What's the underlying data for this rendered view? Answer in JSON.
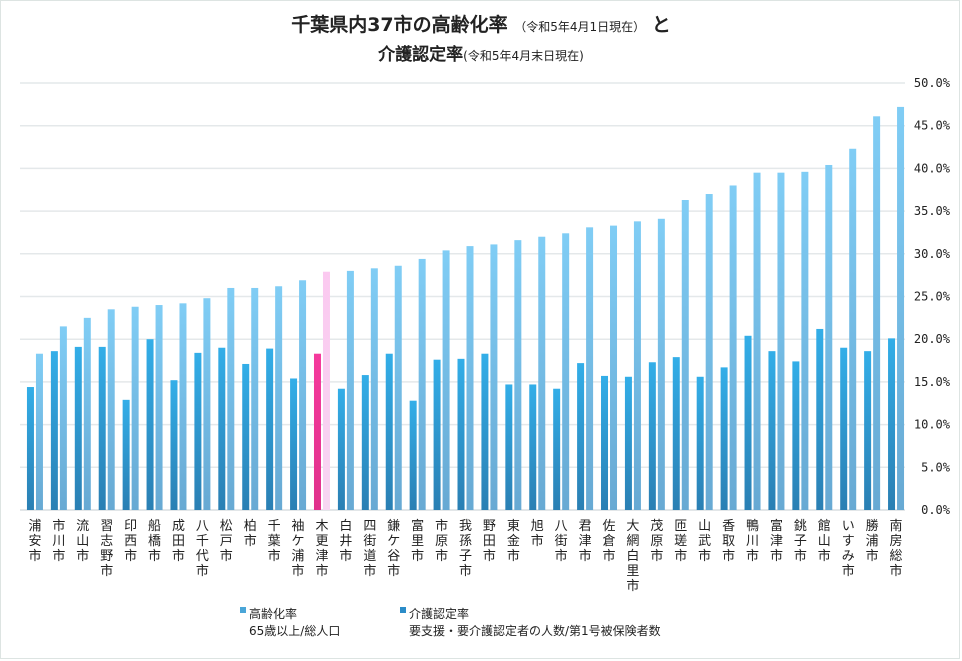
{
  "chart_data": {
    "type": "bar",
    "title": "千葉県内37市の高齢化率",
    "title_note": "（令和5年4月1日現在）",
    "title_connector": "と",
    "title_line2": "介護認定率",
    "title_line2_note": "(令和5年4月末日現在)",
    "xlabel": "",
    "ylabel": "",
    "ylim": [
      0,
      50
    ],
    "yticks": [
      "0.0%",
      "5.0%",
      "10.0%",
      "15.0%",
      "20.0%",
      "25.0%",
      "30.0%",
      "35.0%",
      "40.0%",
      "45.0%",
      "50.0%"
    ],
    "ytick_values": [
      0,
      5,
      10,
      15,
      20,
      25,
      30,
      35,
      40,
      45,
      50
    ],
    "yaxis_side": "right",
    "grid": true,
    "legend_position": "bottom-left",
    "highlight_category": "木更津市",
    "categories": [
      "浦安市",
      "市川市",
      "流山市",
      "習志野市",
      "印西市",
      "船橋市",
      "成田市",
      "八千代市",
      "松戸市",
      "柏市",
      "千葉市",
      "袖ケ浦市",
      "木更津市",
      "白井市",
      "四街道市",
      "鎌ケ谷市",
      "富里市",
      "市原市",
      "我孫子市",
      "野田市",
      "東金市",
      "旭市",
      "八街市",
      "君津市",
      "佐倉市",
      "大網白里市",
      "茂原市",
      "匝瑳市",
      "山武市",
      "香取市",
      "鴨川市",
      "富津市",
      "銚子市",
      "館山市",
      "いすみ市",
      "勝浦市",
      "南房総市"
    ],
    "series": [
      {
        "name": "介護認定率",
        "description": "要支援・要介護認定者の人数/第1号被保険者数",
        "color": "#2b9fd9",
        "highlight_color": "#f2399a",
        "values": [
          14.4,
          18.6,
          19.1,
          19.1,
          12.9,
          20.0,
          15.2,
          18.4,
          19.0,
          17.1,
          18.9,
          15.4,
          18.3,
          14.2,
          15.8,
          18.3,
          12.8,
          17.6,
          17.7,
          18.3,
          14.7,
          14.7,
          14.2,
          17.2,
          15.7,
          15.6,
          17.3,
          17.9,
          15.6,
          16.7,
          20.4,
          18.6,
          17.4,
          21.2,
          19.0,
          18.6,
          20.1
        ]
      },
      {
        "name": "高齢化率",
        "description": "65歳以上/総人口",
        "color": "#7cc8f2",
        "highlight_color": "#fac8ef",
        "values": [
          18.3,
          21.5,
          22.5,
          23.5,
          23.8,
          24.0,
          24.2,
          24.8,
          26.0,
          26.0,
          26.2,
          26.9,
          27.9,
          28.0,
          28.3,
          28.6,
          29.4,
          30.4,
          30.9,
          31.1,
          31.6,
          32.0,
          32.4,
          33.1,
          33.3,
          33.8,
          34.1,
          36.3,
          37.0,
          38.0,
          39.5,
          39.5,
          39.6,
          40.4,
          42.3,
          46.1,
          47.2
        ]
      }
    ]
  },
  "legend": {
    "elderly": {
      "label": "高齢化率",
      "note": "65歳以上/総人口",
      "color": "#4aa6d8"
    },
    "care": {
      "label": "介護認定率",
      "note": "要支援・要介護認定者の人数/第1号被保険者数",
      "color": "#2b8cc8"
    }
  }
}
